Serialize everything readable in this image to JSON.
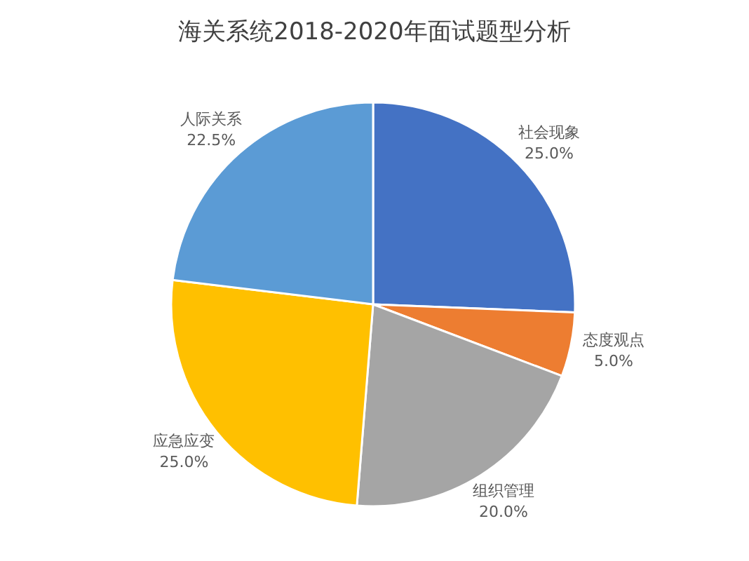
{
  "chart_data": {
    "type": "pie",
    "title": "海关系统2018-2020年面试题型分析",
    "categories": [
      "社会现象",
      "态度观点",
      "组织管理",
      "应急应变",
      "人际关系"
    ],
    "values": [
      25.0,
      5.0,
      20.0,
      25.0,
      22.5
    ],
    "colors": [
      "#4472c4",
      "#ed7d31",
      "#a5a5a5",
      "#ffc000",
      "#5b9bd5"
    ],
    "value_labels": [
      "25.0%",
      "5.0%",
      "20.0%",
      "25.0%",
      "22.5%"
    ]
  }
}
